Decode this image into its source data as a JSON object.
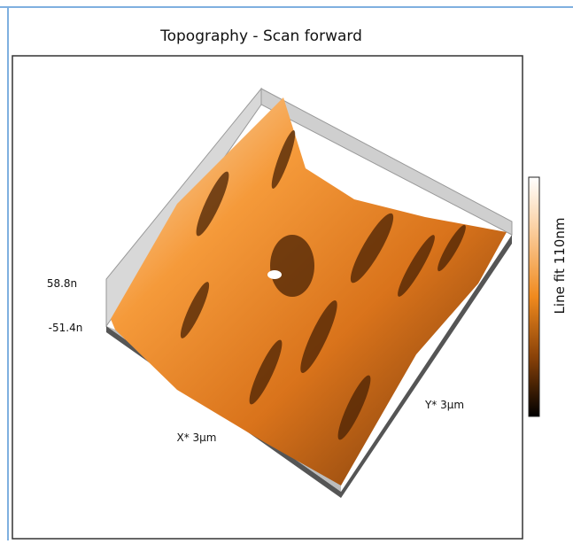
{
  "window": {
    "title": "Topography - Scan forward"
  },
  "plot": {
    "z_top_label": "58.8n",
    "z_bottom_label": "-51.4n",
    "x_axis_label": "X* 3µm",
    "y_axis_label": "Y* 3µm"
  },
  "colorbar": {
    "label": "Line fit 110nm"
  }
}
